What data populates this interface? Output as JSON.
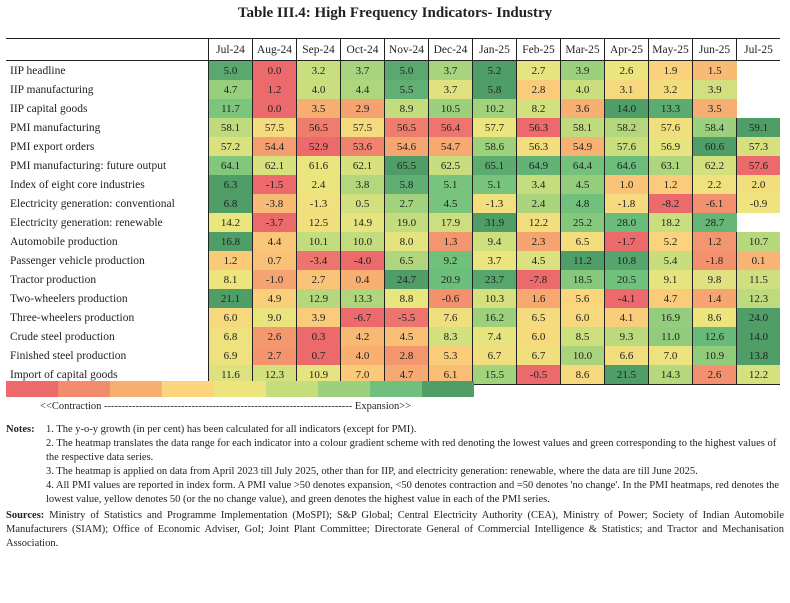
{
  "title": "Table III.4: High Frequency Indicators- Industry",
  "columns": [
    "Jul-24",
    "Aug-24",
    "Sep-24",
    "Oct-24",
    "Nov-24",
    "Dec-24",
    "Jan-25",
    "Feb-25",
    "Mar-25",
    "Apr-25",
    "May-25",
    "Jun-25",
    "Jul-25"
  ],
  "rows": [
    {
      "label": "IIP headline",
      "values": [
        "5.0",
        "0.0",
        "3.2",
        "3.7",
        "5.0",
        "3.7",
        "5.2",
        "2.7",
        "3.9",
        "2.6",
        "1.9",
        "1.5",
        ""
      ]
    },
    {
      "label": "IIP manufacturing",
      "values": [
        "4.7",
        "1.2",
        "4.0",
        "4.4",
        "5.5",
        "3.7",
        "5.8",
        "2.8",
        "4.0",
        "3.1",
        "3.2",
        "3.9",
        ""
      ]
    },
    {
      "label": "IIP capital goods",
      "values": [
        "11.7",
        "0.0",
        "3.5",
        "2.9",
        "8.9",
        "10.5",
        "10.2",
        "8.2",
        "3.6",
        "14.0",
        "13.3",
        "3.5",
        ""
      ]
    },
    {
      "label": "PMI manufacturing",
      "values": [
        "58.1",
        "57.5",
        "56.5",
        "57.5",
        "56.5",
        "56.4",
        "57.7",
        "56.3",
        "58.1",
        "58.2",
        "57.6",
        "58.4",
        "59.1"
      ]
    },
    {
      "label": "PMI export orders",
      "values": [
        "57.2",
        "54.4",
        "52.9",
        "53.6",
        "54.6",
        "54.7",
        "58.6",
        "56.3",
        "54.9",
        "57.6",
        "56.9",
        "60.6",
        "57.3"
      ]
    },
    {
      "label": "PMI manufacturing: future output",
      "values": [
        "64.1",
        "62.1",
        "61.6",
        "62.1",
        "65.5",
        "62.5",
        "65.1",
        "64.9",
        "64.4",
        "64.6",
        "63.1",
        "62.2",
        "57.6"
      ]
    },
    {
      "label": "Index of eight core industries",
      "values": [
        "6.3",
        "-1.5",
        "2.4",
        "3.8",
        "5.8",
        "5.1",
        "5.1",
        "3.4",
        "4.5",
        "1.0",
        "1.2",
        "2.2",
        "2.0"
      ]
    },
    {
      "label": "Electricity generation: conventional",
      "values": [
        "6.8",
        "-3.8",
        "-1.3",
        "0.5",
        "2.7",
        "4.5",
        "-1.3",
        "2.4",
        "4.8",
        "-1.8",
        "-8.2",
        "-6.1",
        "-0.9"
      ]
    },
    {
      "label": "Electricity generation: renewable",
      "values": [
        "14.2",
        "-3.7",
        "12.5",
        "14.9",
        "19.0",
        "17.9",
        "31.9",
        "12.2",
        "25.2",
        "28.0",
        "18.2",
        "28.7",
        ""
      ]
    },
    {
      "label": "Automobile production",
      "values": [
        "16.8",
        "4.4",
        "10.1",
        "10.0",
        "8.0",
        "1.3",
        "9.4",
        "2.3",
        "6.5",
        "-1.7",
        "5.2",
        "1.2",
        "10.7"
      ]
    },
    {
      "label": "Passenger vehicle production",
      "values": [
        "1.2",
        "0.7",
        "-3.4",
        "-4.0",
        "6.5",
        "9.2",
        "3.7",
        "4.5",
        "11.2",
        "10.8",
        "5.4",
        "-1.8",
        "0.1"
      ]
    },
    {
      "label": "Tractor production",
      "values": [
        "8.1",
        "-1.0",
        "2.7",
        "0.4",
        "24.7",
        "20.9",
        "23.7",
        "-7.8",
        "18.5",
        "20.5",
        "9.1",
        "9.8",
        "11.5"
      ]
    },
    {
      "label": "Two-wheelers production",
      "values": [
        "21.1",
        "4.9",
        "12.9",
        "13.3",
        "8.8",
        "-0.6",
        "10.3",
        "1.6",
        "5.6",
        "-4.1",
        "4.7",
        "1.4",
        "12.3"
      ]
    },
    {
      "label": "Three-wheelers production",
      "values": [
        "6.0",
        "9.0",
        "3.9",
        "-6.7",
        "-5.5",
        "7.6",
        "16.2",
        "6.5",
        "6.0",
        "4.1",
        "16.9",
        "8.6",
        "24.0"
      ]
    },
    {
      "label": "Crude steel production",
      "values": [
        "6.8",
        "2.6",
        "0.3",
        "4.2",
        "4.5",
        "8.3",
        "7.4",
        "6.0",
        "8.5",
        "9.3",
        "11.0",
        "12.6",
        "14.0"
      ]
    },
    {
      "label": "Finished steel production",
      "values": [
        "6.9",
        "2.7",
        "0.7",
        "4.0",
        "2.8",
        "5.3",
        "6.7",
        "6.7",
        "10.0",
        "6.6",
        "7.0",
        "10.9",
        "13.8"
      ]
    },
    {
      "label": "Import of capital goods",
      "values": [
        "11.6",
        "12.3",
        "10.9",
        "7.0",
        "4.7",
        "6.1",
        "15.5",
        "-0.5",
        "8.6",
        "21.5",
        "14.3",
        "2.6",
        "12.2"
      ]
    }
  ],
  "palette": [
    "#ec6a6c",
    "#f28c6e",
    "#f7ae72",
    "#fbd47c",
    "#ece57e",
    "#c6dd7e",
    "#9bd07c",
    "#6ec07c",
    "#4f9e68"
  ],
  "legend": {
    "text": "<<Contraction ----------------------------------------------------------------------- Expansion>>"
  },
  "notes": {
    "label": "Notes:",
    "items": [
      "1. The y-o-y growth (in per cent) has been calculated for all indicators (except for PMI).",
      "2. The heatmap translates the data range for each indicator into a colour gradient scheme with red denoting the lowest values and green corresponding to the highest values of the respective data series.",
      "3. The heatmap is applied on data from April 2023 till July 2025, other than for IIP, and electricity generation: renewable, where the data are till June 2025.",
      "4. All PMI values are reported in index form. A PMI value >50 denotes expansion, <50 denotes contraction and =50 denotes 'no change'. In the PMI heatmaps, red denotes the lowest value, yellow denotes 50 (or the no change value), and green denotes the highest value in each of the PMI series."
    ]
  },
  "sources": {
    "label": "Sources:",
    "text": " Ministry of Statistics and Programme Implementation (MoSPI); S&P Global; Central Electricity Authority (CEA), Ministry of Power; Society of Indian Automobile Manufacturers (SIAM); Office of Economic Adviser, GoI; Joint Plant Committee; Directorate General of Commercial Intelligence & Statistics; and Tractor and Mechanisation Association."
  }
}
